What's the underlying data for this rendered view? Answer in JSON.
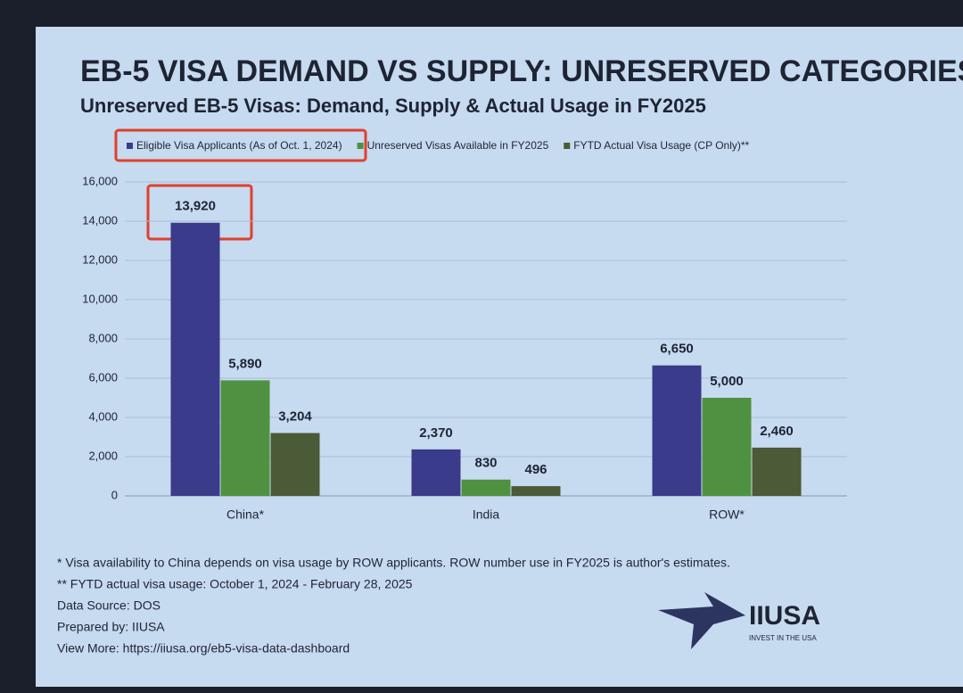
{
  "slide_title": "EB-5 VISA DEMAND VS SUPPLY: UNRESERVED CATEGORIES",
  "chart_data": {
    "type": "bar",
    "title": "Unreserved EB-5 Visas: Demand, Supply & Actual Usage in FY2025",
    "categories": [
      "China*",
      "India",
      "ROW*"
    ],
    "series": [
      {
        "name": "Eligible Visa Applicants (As of Oct. 1, 2024)",
        "color": "#3a3b8a",
        "values": [
          13920,
          2370,
          6650
        ],
        "value_labels": [
          "13,920",
          "2,370",
          "6,650"
        ]
      },
      {
        "name": "Unreserved Visas Available in FY2025",
        "color": "#4f9140",
        "values": [
          5890,
          830,
          5000
        ],
        "value_labels": [
          "5,890",
          "830",
          "5,000"
        ]
      },
      {
        "name": "FYTD Actual Visa Usage (CP Only)**",
        "color": "#4b5a37",
        "values": [
          3204,
          496,
          2460
        ],
        "value_labels": [
          "3,204",
          "496",
          "2,460"
        ]
      }
    ],
    "ylim": [
      0,
      16000
    ],
    "yticks": [
      0,
      {
        "value": 2000,
        "label": "2,000"
      },
      {
        "value": 4000,
        "label": "4,000"
      },
      {
        "value": 6000,
        "label": "6,000"
      },
      {
        "value": 8000,
        "label": "8,000"
      },
      {
        "value": 10000,
        "label": "10,000"
      },
      {
        "value": 12000,
        "label": "12,000"
      },
      {
        "value": 14000,
        "label": "14,000"
      },
      {
        "value": 16000,
        "label": "16,000"
      }
    ],
    "grid": true
  },
  "notes": [
    "* Visa availability to China depends on visa usage by ROW applicants. ROW number use in FY2025 is author's estimates.",
    "** FYTD actual visa usage: October 1, 2024 - February 28, 2025",
    "Data Source: DOS",
    "Prepared by: IIUSA",
    "View More: https://iiusa.org/eb5-visa-data-dashboard"
  ],
  "logo": {
    "name": "IIUSA",
    "tagline": "INVEST IN THE USA"
  }
}
